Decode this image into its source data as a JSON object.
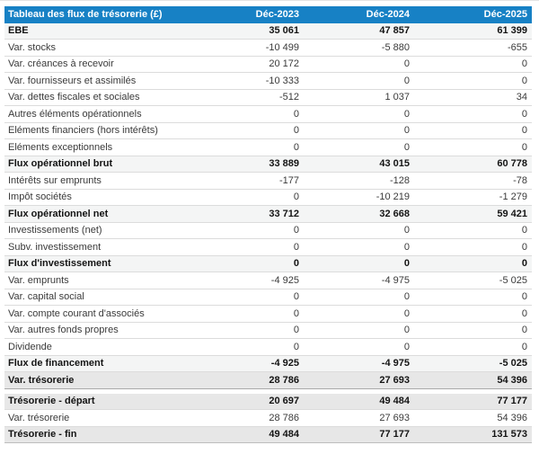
{
  "table": {
    "title": "Tableau des flux de trésorerie (£)",
    "columns": [
      "Déc-2023",
      "Déc-2024",
      "Déc-2025"
    ],
    "colors": {
      "header_bg": "#1781c5",
      "header_text": "#ffffff",
      "subtotal_row_bg": "#f4f5f5",
      "total_row_bg": "#e7e7e7",
      "row_border": "#dcdcdc"
    },
    "sections": [
      {
        "rows": [
          {
            "label": "EBE",
            "type": "subtotal",
            "values": [
              "35 061",
              "47 857",
              "61 399"
            ]
          },
          {
            "label": "Var. stocks",
            "type": "detail",
            "values": [
              "-10 499",
              "-5 880",
              "-655"
            ]
          },
          {
            "label": "Var. créances à recevoir",
            "type": "detail",
            "values": [
              "20 172",
              "0",
              "0"
            ]
          },
          {
            "label": "Var. fournisseurs et assimilés",
            "type": "detail",
            "values": [
              "-10 333",
              "0",
              "0"
            ]
          },
          {
            "label": "Var. dettes fiscales et sociales",
            "type": "detail",
            "values": [
              "-512",
              "1 037",
              "34"
            ]
          },
          {
            "label": "Autres éléments opérationnels",
            "type": "detail",
            "values": [
              "0",
              "0",
              "0"
            ]
          },
          {
            "label": "Eléments financiers (hors intérêts)",
            "type": "detail",
            "values": [
              "0",
              "0",
              "0"
            ]
          },
          {
            "label": "Eléments exceptionnels",
            "type": "detail",
            "values": [
              "0",
              "0",
              "0"
            ]
          },
          {
            "label": "Flux opérationnel brut",
            "type": "subtotal",
            "values": [
              "33 889",
              "43 015",
              "60 778"
            ]
          },
          {
            "label": "Intérêts sur emprunts",
            "type": "detail",
            "values": [
              "-177",
              "-128",
              "-78"
            ]
          },
          {
            "label": "Impôt sociétés",
            "type": "detail",
            "values": [
              "0",
              "-10 219",
              "-1 279"
            ]
          },
          {
            "label": "Flux opérationnel net",
            "type": "subtotal",
            "values": [
              "33 712",
              "32 668",
              "59 421"
            ]
          },
          {
            "label": "Investissements (net)",
            "type": "detail",
            "values": [
              "0",
              "0",
              "0"
            ]
          },
          {
            "label": "Subv. investissement",
            "type": "detail",
            "values": [
              "0",
              "0",
              "0"
            ]
          },
          {
            "label": "Flux d'investissement",
            "type": "subtotal",
            "values": [
              "0",
              "0",
              "0"
            ]
          },
          {
            "label": "Var. emprunts",
            "type": "detail",
            "values": [
              "-4 925",
              "-4 975",
              "-5 025"
            ]
          },
          {
            "label": "Var. capital social",
            "type": "detail",
            "values": [
              "0",
              "0",
              "0"
            ]
          },
          {
            "label": "Var. compte courant d'associés",
            "type": "detail",
            "values": [
              "0",
              "0",
              "0"
            ]
          },
          {
            "label": "Var. autres fonds propres",
            "type": "detail",
            "values": [
              "0",
              "0",
              "0"
            ]
          },
          {
            "label": "Dividende",
            "type": "detail",
            "values": [
              "0",
              "0",
              "0"
            ]
          },
          {
            "label": "Flux de financement",
            "type": "subtotal",
            "values": [
              "-4 925",
              "-4 975",
              "-5 025"
            ]
          },
          {
            "label": "Var. trésorerie",
            "type": "total",
            "values": [
              "28 786",
              "27 693",
              "54 396"
            ]
          }
        ]
      },
      {
        "rows": [
          {
            "label": "Trésorerie - départ",
            "type": "total",
            "values": [
              "20 697",
              "49 484",
              "77 177"
            ]
          },
          {
            "label": "Var. trésorerie",
            "type": "detail",
            "values": [
              "28 786",
              "27 693",
              "54 396"
            ]
          },
          {
            "label": "Trésorerie - fin",
            "type": "total",
            "values": [
              "49 484",
              "77 177",
              "131 573"
            ]
          }
        ]
      }
    ]
  }
}
